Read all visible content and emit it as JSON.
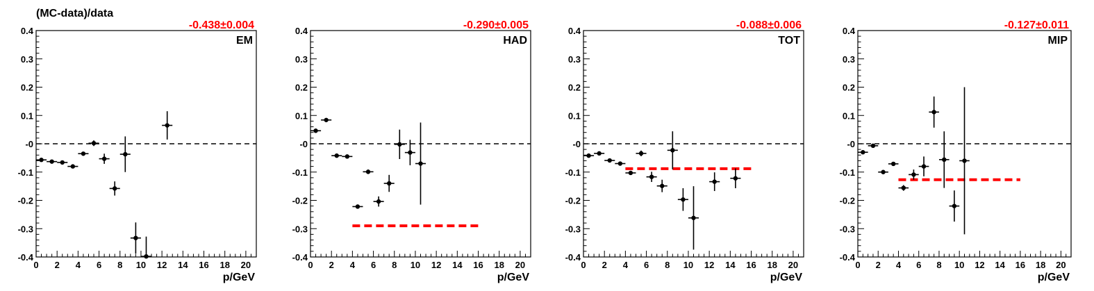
{
  "figure": {
    "ylabel": "(MC-data)/data",
    "colors": {
      "data": "#000000",
      "fit": "#ff0000",
      "reference": "#000000"
    }
  },
  "chart_data": [
    {
      "type": "scatter",
      "label": "EM",
      "fit_label": "-0.438±0.004",
      "xlabel": "p/GeV",
      "xlim": [
        0,
        21
      ],
      "ylim": [
        -0.4,
        0.4
      ],
      "x_ticks": [
        0,
        2,
        4,
        6,
        8,
        10,
        12,
        14,
        16,
        18,
        20
      ],
      "y_ticks": [
        -0.4,
        -0.3,
        -0.2,
        -0.1,
        0,
        0.1,
        0.2,
        0.3,
        0.4
      ],
      "y_tick_labels": [
        "-0.4",
        "-0.3",
        "-0.2",
        "-0.1",
        "-0",
        "0.1",
        "0.2",
        "0.3",
        "0.4"
      ],
      "reference_line": 0,
      "fit_line": null,
      "points": [
        {
          "x": 0.5,
          "y": -0.057,
          "xerr": 0.5,
          "yerr": 0.004
        },
        {
          "x": 1.5,
          "y": -0.063,
          "xerr": 0.5,
          "yerr": 0.004
        },
        {
          "x": 2.5,
          "y": -0.066,
          "xerr": 0.5,
          "yerr": 0.004
        },
        {
          "x": 3.5,
          "y": -0.08,
          "xerr": 0.5,
          "yerr": 0.005
        },
        {
          "x": 4.5,
          "y": -0.035,
          "xerr": 0.5,
          "yerr": 0.006
        },
        {
          "x": 5.5,
          "y": 0.002,
          "xerr": 0.5,
          "yerr": 0.01
        },
        {
          "x": 6.5,
          "y": -0.053,
          "xerr": 0.5,
          "yerr": 0.018
        },
        {
          "x": 7.5,
          "y": -0.158,
          "xerr": 0.5,
          "yerr": 0.025
        },
        {
          "x": 8.5,
          "y": -0.037,
          "xerr": 0.5,
          "yerr": 0.063
        },
        {
          "x": 9.5,
          "y": -0.333,
          "xerr": 0.5,
          "yerr": 0.055
        },
        {
          "x": 10.5,
          "y": -0.398,
          "xerr": 0.5,
          "yerr": 0.07
        },
        {
          "x": 12.5,
          "y": 0.065,
          "xerr": 0.5,
          "yerr": 0.05
        }
      ]
    },
    {
      "type": "scatter",
      "label": "HAD",
      "fit_label": "-0.290±0.005",
      "xlabel": "p/GeV",
      "xlim": [
        0,
        21
      ],
      "ylim": [
        -0.4,
        0.4
      ],
      "x_ticks": [
        0,
        2,
        4,
        6,
        8,
        10,
        12,
        14,
        16,
        18,
        20
      ],
      "y_ticks": [
        -0.4,
        -0.3,
        -0.2,
        -0.1,
        0,
        0.1,
        0.2,
        0.3,
        0.4
      ],
      "y_tick_labels": [
        "-0.4",
        "-0.3",
        "-0.2",
        "-0.1",
        "-0",
        "0.1",
        "0.2",
        "0.3",
        "0.4"
      ],
      "reference_line": 0,
      "fit_line": {
        "y": -0.29,
        "x_range": [
          4,
          16
        ]
      },
      "points": [
        {
          "x": 0.5,
          "y": 0.046,
          "xerr": 0.5,
          "yerr": 0.004
        },
        {
          "x": 1.5,
          "y": 0.084,
          "xerr": 0.5,
          "yerr": 0.004
        },
        {
          "x": 2.5,
          "y": -0.042,
          "xerr": 0.5,
          "yerr": 0.004
        },
        {
          "x": 3.5,
          "y": -0.045,
          "xerr": 0.5,
          "yerr": 0.005
        },
        {
          "x": 4.5,
          "y": -0.222,
          "xerr": 0.5,
          "yerr": 0.006
        },
        {
          "x": 5.5,
          "y": -0.099,
          "xerr": 0.5,
          "yerr": 0.008
        },
        {
          "x": 6.5,
          "y": -0.204,
          "xerr": 0.5,
          "yerr": 0.018
        },
        {
          "x": 7.5,
          "y": -0.14,
          "xerr": 0.5,
          "yerr": 0.03
        },
        {
          "x": 8.5,
          "y": -0.002,
          "xerr": 0.5,
          "yerr": 0.052
        },
        {
          "x": 9.5,
          "y": -0.031,
          "xerr": 0.5,
          "yerr": 0.045
        },
        {
          "x": 10.5,
          "y": -0.07,
          "xerr": 0.5,
          "yerr": 0.145
        }
      ]
    },
    {
      "type": "scatter",
      "label": "TOT",
      "fit_label": "-0.088±0.006",
      "xlabel": "p/GeV",
      "xlim": [
        0,
        21
      ],
      "ylim": [
        -0.4,
        0.4
      ],
      "x_ticks": [
        0,
        2,
        4,
        6,
        8,
        10,
        12,
        14,
        16,
        18,
        20
      ],
      "y_ticks": [
        -0.4,
        -0.3,
        -0.2,
        -0.1,
        0,
        0.1,
        0.2,
        0.3,
        0.4
      ],
      "y_tick_labels": [
        "-0.4",
        "-0.3",
        "-0.2",
        "-0.1",
        "-0",
        "0.1",
        "0.2",
        "0.3",
        "0.4"
      ],
      "reference_line": 0,
      "fit_line": {
        "y": -0.088,
        "x_range": [
          4,
          16
        ]
      },
      "points": [
        {
          "x": 0.5,
          "y": -0.042,
          "xerr": 0.5,
          "yerr": 0.004
        },
        {
          "x": 1.5,
          "y": -0.034,
          "xerr": 0.5,
          "yerr": 0.004
        },
        {
          "x": 2.5,
          "y": -0.059,
          "xerr": 0.5,
          "yerr": 0.004
        },
        {
          "x": 3.5,
          "y": -0.07,
          "xerr": 0.5,
          "yerr": 0.005
        },
        {
          "x": 4.5,
          "y": -0.103,
          "xerr": 0.5,
          "yerr": 0.006
        },
        {
          "x": 5.5,
          "y": -0.034,
          "xerr": 0.5,
          "yerr": 0.01
        },
        {
          "x": 6.5,
          "y": -0.117,
          "xerr": 0.5,
          "yerr": 0.018
        },
        {
          "x": 7.5,
          "y": -0.149,
          "xerr": 0.5,
          "yerr": 0.022
        },
        {
          "x": 8.5,
          "y": -0.023,
          "xerr": 0.5,
          "yerr": 0.067
        },
        {
          "x": 9.5,
          "y": -0.197,
          "xerr": 0.5,
          "yerr": 0.04
        },
        {
          "x": 10.5,
          "y": -0.262,
          "xerr": 0.5,
          "yerr": 0.112
        },
        {
          "x": 12.5,
          "y": -0.134,
          "xerr": 0.5,
          "yerr": 0.033
        },
        {
          "x": 14.5,
          "y": -0.122,
          "xerr": 0.5,
          "yerr": 0.035
        }
      ]
    },
    {
      "type": "scatter",
      "label": "MIP",
      "fit_label": "-0.127±0.011",
      "xlabel": "p/GeV",
      "xlim": [
        0,
        21
      ],
      "ylim": [
        -0.4,
        0.4
      ],
      "x_ticks": [
        0,
        2,
        4,
        6,
        8,
        10,
        12,
        14,
        16,
        18,
        20
      ],
      "y_ticks": [
        -0.4,
        -0.3,
        -0.2,
        -0.1,
        0,
        0.1,
        0.2,
        0.3,
        0.4
      ],
      "y_tick_labels": [
        "-0.4",
        "-0.3",
        "-0.2",
        "-0.1",
        "-0",
        "0.1",
        "0.2",
        "0.3",
        "0.4"
      ],
      "reference_line": 0,
      "fit_line": {
        "y": -0.127,
        "x_range": [
          4,
          16
        ]
      },
      "points": [
        {
          "x": 0.5,
          "y": -0.03,
          "xerr": 0.5,
          "yerr": 0.004
        },
        {
          "x": 1.5,
          "y": -0.007,
          "xerr": 0.5,
          "yerr": 0.004
        },
        {
          "x": 2.5,
          "y": -0.1,
          "xerr": 0.5,
          "yerr": 0.004
        },
        {
          "x": 3.5,
          "y": -0.071,
          "xerr": 0.5,
          "yerr": 0.005
        },
        {
          "x": 4.5,
          "y": -0.156,
          "xerr": 0.5,
          "yerr": 0.01
        },
        {
          "x": 5.5,
          "y": -0.109,
          "xerr": 0.5,
          "yerr": 0.018
        },
        {
          "x": 6.5,
          "y": -0.08,
          "xerr": 0.5,
          "yerr": 0.035
        },
        {
          "x": 7.5,
          "y": 0.112,
          "xerr": 0.5,
          "yerr": 0.055
        },
        {
          "x": 8.5,
          "y": -0.056,
          "xerr": 0.5,
          "yerr": 0.1
        },
        {
          "x": 9.5,
          "y": -0.22,
          "xerr": 0.5,
          "yerr": 0.055
        },
        {
          "x": 10.5,
          "y": -0.06,
          "xerr": 0.5,
          "yerr": 0.26
        }
      ]
    }
  ]
}
